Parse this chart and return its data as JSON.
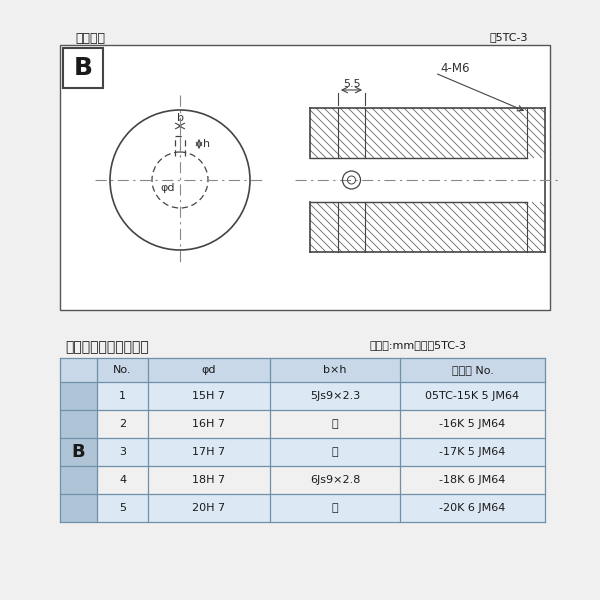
{
  "bg_color": "#f0f0f0",
  "inner_bg": "#ffffff",
  "title_diagram": "軸穴形状",
  "fig_label": "図5TC-3",
  "table_title": "軸穴形状コード一覧表",
  "table_unit": "（単位:mm）　表5TC-3",
  "dim_55": "5.5",
  "dim_4M6": "4-M6",
  "label_b_dim": "b",
  "label_h_dim": "h",
  "label_phid": "φd",
  "col_headers": [
    "No.",
    "φd",
    "b×h",
    "コード No."
  ],
  "row_label": "B",
  "rows": [
    [
      "1",
      "15H 7",
      "5Js9×2.3",
      "05TC-15K 5 JM64"
    ],
    [
      "2",
      "16H 7",
      "〜",
      "-16K 5 JM64"
    ],
    [
      "3",
      "17H 7",
      "〜",
      "-17K 5 JM64"
    ],
    [
      "4",
      "18H 7",
      "6Js9×2.8",
      "-18K 6 JM64"
    ],
    [
      "5",
      "20H 7",
      "〜",
      "-20K 6 JM64"
    ]
  ],
  "light_blue": "#dce9f5",
  "header_bg": "#c8d8e8",
  "b_cell_bg": "#b0c4d8",
  "table_line_color": "#7090a8",
  "text_color": "#1a1a1a",
  "line_color": "#444444",
  "cl_color": "#888888",
  "hatch_color": "#666666"
}
